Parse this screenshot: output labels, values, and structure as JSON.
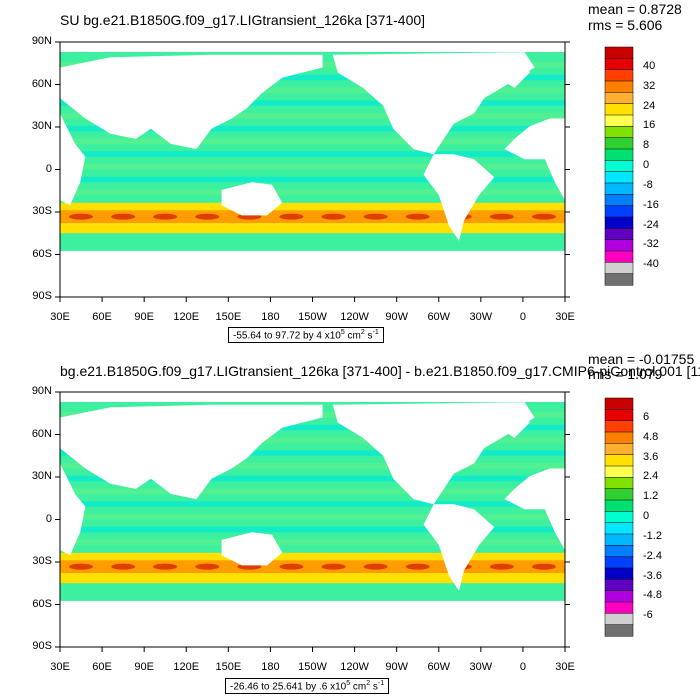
{
  "panels": [
    {
      "title": "SU bg.e21.B1850G.f09_g17.LIGtransient_126ka [371-400]",
      "mean": "mean = 0.8728",
      "rms": "rms = 5.606",
      "range_text": "-55.64 to 97.72 by 4 x10",
      "range_exp": "5",
      "range_unit": " cm",
      "range_unit_exp": "2",
      "range_s": " s",
      "range_s_exp": "-1",
      "legend_labels": [
        "40",
        "32",
        "24",
        "16",
        "8",
        "0",
        "-8",
        "-16",
        "-24",
        "-32",
        "-40"
      ]
    },
    {
      "title": "bg.e21.B1850G.f09_g17.LIGtransient_126ka [371-400] - b.e21.B1850.f09_g17.CMIP6-piControl.001 [11",
      "mean": "mean = -0.01755",
      "rms": "rms = 1.079",
      "range_text": "-26.46 to 25.641 by .6 x10",
      "range_exp": "5",
      "range_unit": " cm",
      "range_unit_exp": "2",
      "range_s": " s",
      "range_s_exp": "-1",
      "legend_labels": [
        "6",
        "4.8",
        "3.6",
        "2.4",
        "1.2",
        "0",
        "-1.2",
        "-2.4",
        "-3.6",
        "-4.8",
        "-6"
      ]
    }
  ],
  "lat_ticks": [
    "90N",
    "60N",
    "30N",
    "0",
    "30S",
    "60S",
    "90S"
  ],
  "lon_ticks": [
    "30E",
    "60E",
    "90E",
    "120E",
    "150E",
    "180",
    "150W",
    "120W",
    "90W",
    "60W",
    "30W",
    "0",
    "30E"
  ],
  "colors": {
    "palette": [
      "#c80000",
      "#e60000",
      "#ff4000",
      "#ff8000",
      "#ffb030",
      "#ffe000",
      "#ffff50",
      "#80e000",
      "#30d030",
      "#00e070",
      "#00ffd0",
      "#00e8ff",
      "#00b8ff",
      "#0080ff",
      "#0040ff",
      "#0000c8",
      "#6000c0",
      "#b000e0",
      "#ff00c0",
      "#d0d0d0",
      "#707070"
    ],
    "ocean_main": "#3df0a0",
    "ocean_alt": "#00e8d8",
    "land": "#ffffff"
  }
}
